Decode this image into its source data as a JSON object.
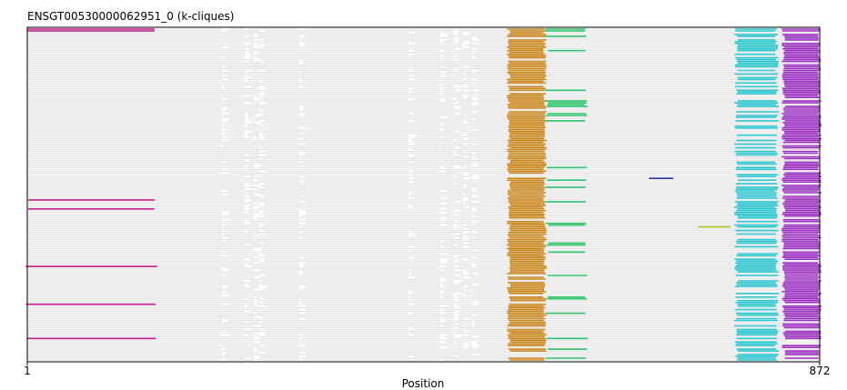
{
  "chart_data": {
    "type": "alignment-overview",
    "title": "ENSGT00530000062951_0 (k-cliques)",
    "xlabel": "Position",
    "x_range": [
      1,
      872
    ],
    "x_ticks": [
      "1",
      "872"
    ],
    "num_rows": 185,
    "grid": false,
    "background_row_color": "#e3e3e3",
    "background_row_coverage": [
      1,
      872
    ],
    "clusters": [
      {
        "name": "magenta",
        "color": "#c0188f",
        "x_range": [
          1,
          142
        ],
        "rows": [
          0,
          1,
          95,
          100,
          132,
          153,
          172
        ]
      },
      {
        "name": "gold",
        "color": "#c8861c",
        "x_range": [
          530,
          570
        ],
        "rows": "most"
      },
      {
        "name": "green",
        "color": "#2cc26a",
        "x_range": [
          572,
          615
        ],
        "rows": [
          0,
          1,
          4,
          12,
          34,
          40,
          41,
          42,
          43,
          47,
          48,
          51,
          77,
          84,
          88,
          96,
          108,
          109,
          119,
          120,
          124,
          137,
          149,
          150,
          158,
          172,
          178,
          183
        ]
      },
      {
        "name": "cyan",
        "color": "#29c4cc",
        "x_range": [
          780,
          825
        ],
        "rows": "many"
      },
      {
        "name": "purple",
        "color": "#9a2fc0",
        "x_range": [
          832,
          872
        ],
        "rows": "most"
      },
      {
        "name": "navy",
        "color": "#2b2fa6",
        "x_range": [
          683,
          712
        ],
        "rows": [
          83
        ]
      },
      {
        "name": "olive",
        "color": "#a9c21b",
        "x_range": [
          739,
          775
        ],
        "rows": [
          110
        ]
      }
    ]
  }
}
